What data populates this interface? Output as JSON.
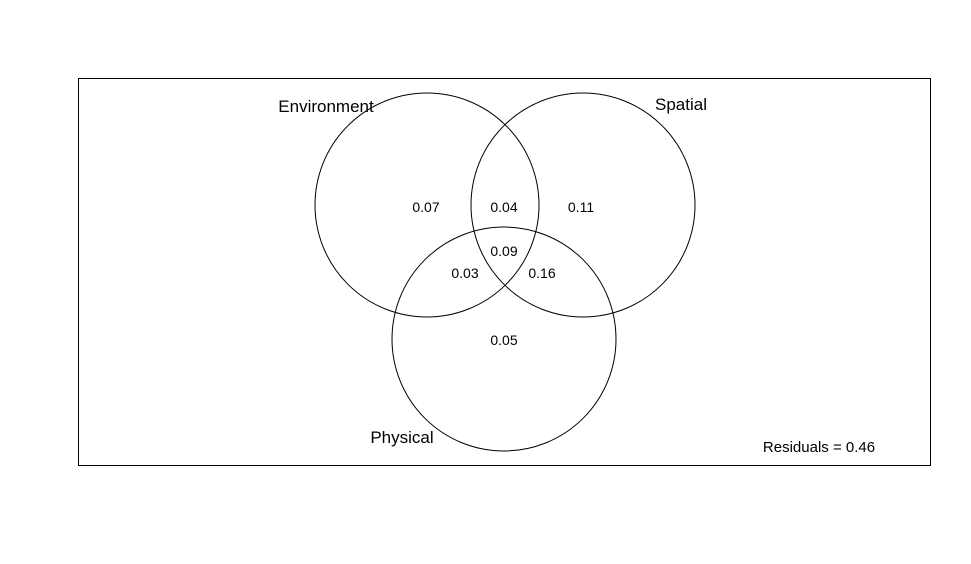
{
  "diagram": {
    "type": "venn",
    "sets": [
      {
        "label": "Environment"
      },
      {
        "label": "Spatial"
      },
      {
        "label": "Physical"
      }
    ],
    "fractions": {
      "environment_only": "0.07",
      "environment_spatial": "0.04",
      "spatial_only": "0.11",
      "all_three": "0.09",
      "environment_physical": "0.03",
      "spatial_physical": "0.16",
      "physical_only": "0.05"
    },
    "residuals": "Residuals = 0.46"
  }
}
